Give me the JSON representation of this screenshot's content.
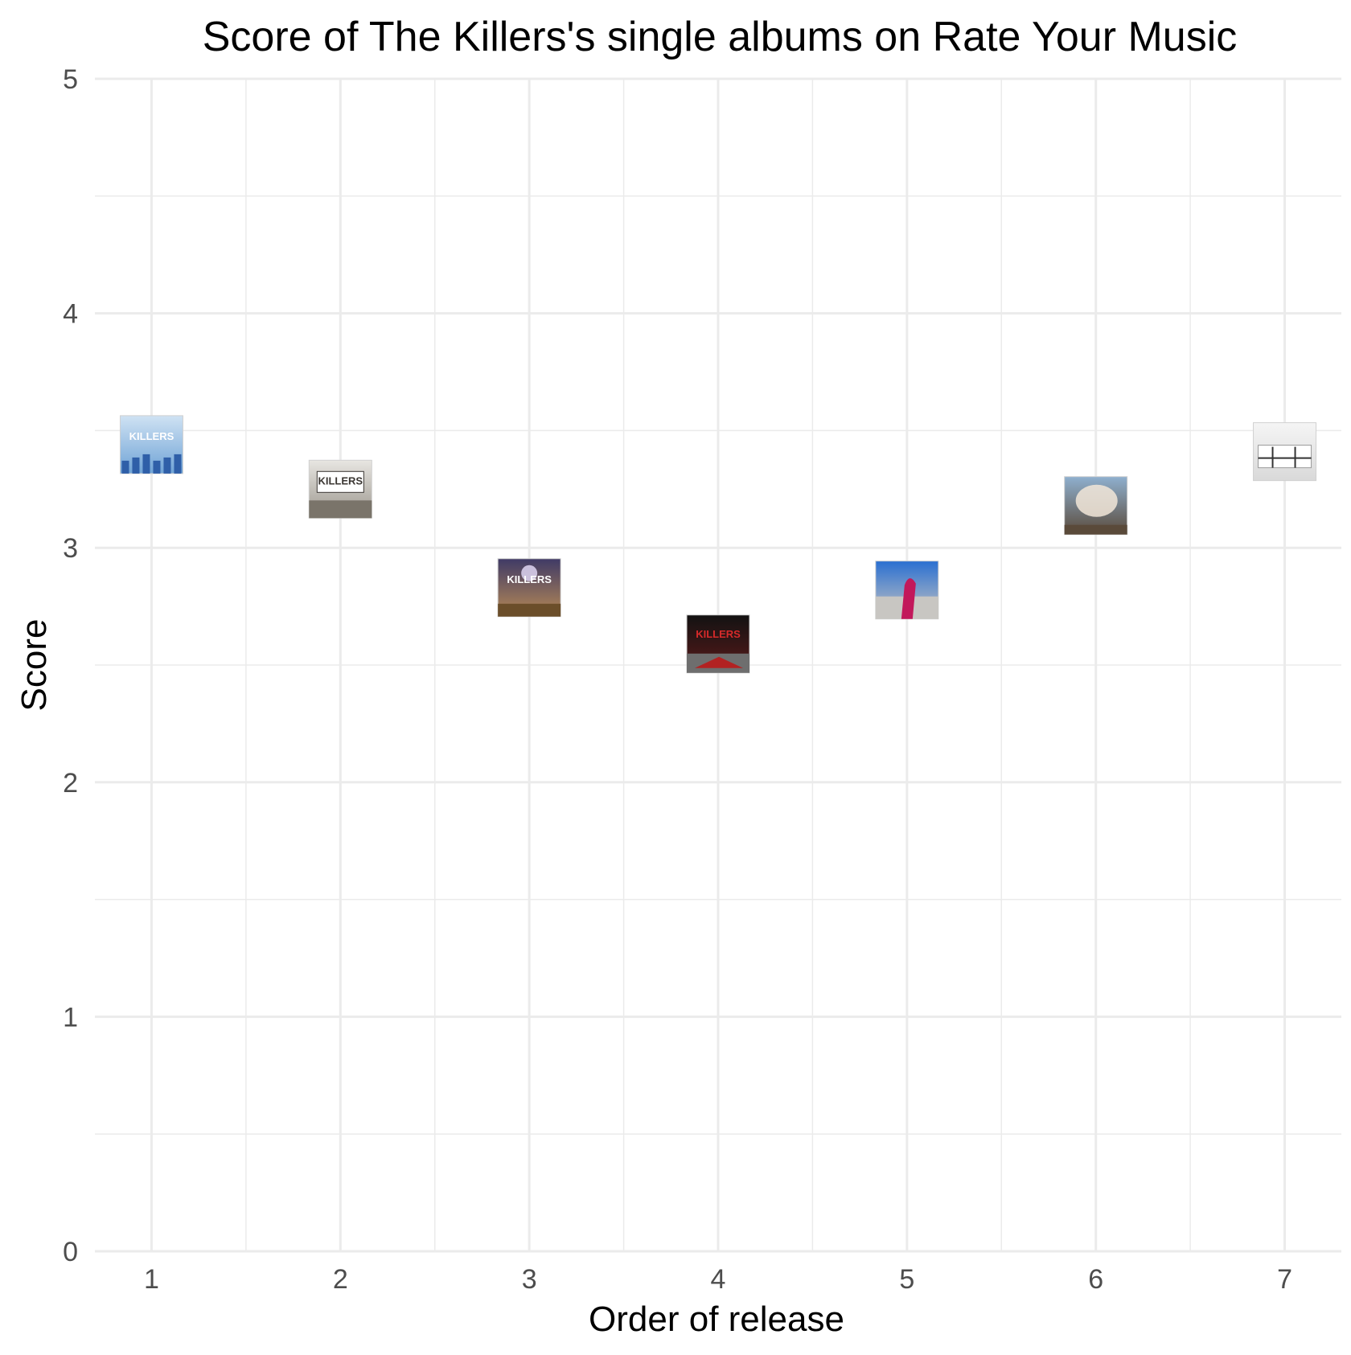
{
  "chart_data": {
    "type": "scatter",
    "title": "Score of The Killers's single albums on Rate Your Music",
    "xlabel": "Order of release",
    "ylabel": "Score",
    "x": [
      1,
      2,
      3,
      4,
      5,
      6,
      7
    ],
    "y": [
      3.44,
      3.25,
      2.83,
      2.59,
      2.82,
      3.18,
      3.41
    ],
    "xlim": [
      0.7,
      7.3
    ],
    "ylim": [
      0,
      5
    ],
    "x_ticks": [
      "1",
      "2",
      "3",
      "4",
      "5",
      "6",
      "7"
    ],
    "y_ticks": [
      "0",
      "1",
      "2",
      "3",
      "4",
      "5"
    ],
    "grid": true,
    "legend": "none",
    "marker": "album-cover-thumbnail",
    "colors": {
      "background": "#ffffff",
      "grid": "#ebebeb",
      "tick_text": "#4d4d4d",
      "title_text": "#000000"
    },
    "covers": [
      {
        "icon": "album-cover-1-icon",
        "bg_top": "#cfe2f3",
        "bg_bottom": "#6fa3d6",
        "accent": "#2f5fa8",
        "text": "KILLERS"
      },
      {
        "icon": "album-cover-2-icon",
        "bg_top": "#e8e6e2",
        "bg_bottom": "#9a958c",
        "accent": "#3a3632",
        "text": "KILLERS"
      },
      {
        "icon": "album-cover-3-icon",
        "bg_top": "#3f3a66",
        "bg_bottom": "#b88a55",
        "accent": "#d7cdea",
        "text": "KILLERS"
      },
      {
        "icon": "album-cover-4-icon",
        "bg_top": "#121212",
        "bg_bottom": "#5a1a1a",
        "accent": "#d62a2a",
        "text": "KILLERS"
      },
      {
        "icon": "album-cover-5-icon",
        "bg_top": "#2a6fd1",
        "bg_bottom": "#c8c6c2",
        "accent": "#c2185b",
        "text": ""
      },
      {
        "icon": "album-cover-6-icon",
        "bg_top": "#8fb0cf",
        "bg_bottom": "#5a4a3a",
        "accent": "#f2e6d8",
        "text": ""
      },
      {
        "icon": "album-cover-7-icon",
        "bg_top": "#f5f5f5",
        "bg_bottom": "#d9d9d9",
        "accent": "#333333",
        "text": ""
      }
    ]
  }
}
